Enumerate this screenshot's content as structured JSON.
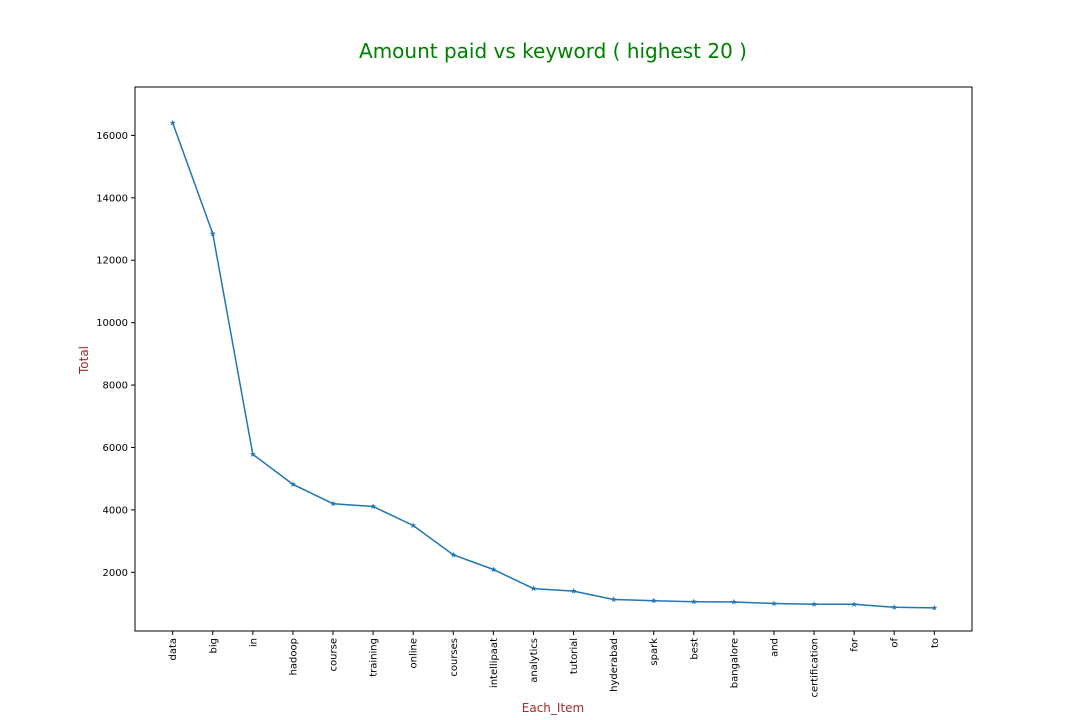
{
  "chart_data": {
    "type": "line",
    "title": "Amount paid vs keyword ( highest 20 )",
    "xlabel": "Each_Item",
    "ylabel": "Total",
    "categories": [
      "data",
      "big",
      "in",
      "hadoop",
      "course",
      "training",
      "online",
      "courses",
      "intellipaat",
      "analytics",
      "tutorial",
      "hyderabad",
      "spark",
      "best",
      "bangalore",
      "and",
      "certification",
      "for",
      "of",
      "to"
    ],
    "values": [
      16400,
      12850,
      5780,
      4820,
      4200,
      4110,
      3500,
      2560,
      2090,
      1480,
      1400,
      1130,
      1090,
      1060,
      1050,
      1000,
      980,
      975,
      880,
      860
    ],
    "yticks": [
      2000,
      4000,
      6000,
      8000,
      10000,
      12000,
      14000,
      16000
    ],
    "ylim": [
      120,
      17550
    ],
    "marker": "star",
    "grid": false,
    "colors": {
      "line": "#1f77b4",
      "title": "#008000",
      "axis_label": "#a52a2a"
    }
  }
}
